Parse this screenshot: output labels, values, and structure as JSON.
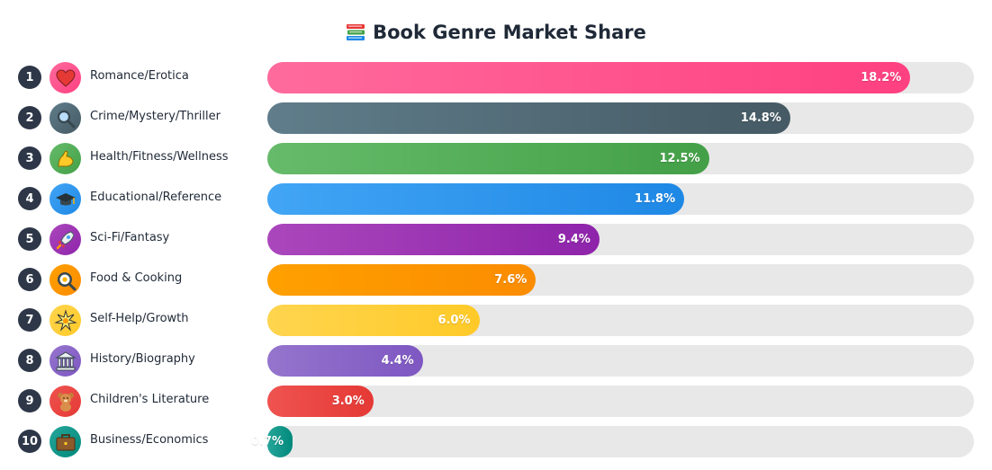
{
  "chart_data": {
    "type": "bar",
    "orientation": "horizontal",
    "title": "Book Genre Market Share",
    "title_icon": "books-icon",
    "xlim": [
      0,
      20
    ],
    "grid": false,
    "legend": "none",
    "value_suffix": "%",
    "categories": [
      "Romance/Erotica",
      "Crime/Mystery/Thriller",
      "Health/Fitness/Wellness",
      "Educational/Reference",
      "Sci-Fi/Fantasy",
      "Food & Cooking",
      "Self-Help/Growth",
      "History/Biography",
      "Children's Literature",
      "Business/Economics"
    ],
    "values": [
      18.2,
      14.8,
      12.5,
      11.8,
      9.4,
      7.6,
      6.0,
      4.4,
      3.0,
      0.7
    ],
    "ranks": [
      "1",
      "2",
      "3",
      "4",
      "5",
      "6",
      "7",
      "8",
      "9",
      "10"
    ],
    "icons": [
      "heart-icon",
      "magnifying-glass-icon",
      "flexed-arm-icon",
      "graduation-cap-icon",
      "rocket-icon",
      "pan-egg-icon",
      "sparkle-burst-icon",
      "classical-building-icon",
      "teddy-bear-icon",
      "briefcase-icon"
    ],
    "colors": [
      [
        "#ff6b9d",
        "#ff4081"
      ],
      [
        "#607d8b",
        "#455a64"
      ],
      [
        "#66bb6a",
        "#43a047"
      ],
      [
        "#42a5f5",
        "#1e88e5"
      ],
      [
        "#ab47bc",
        "#8e24aa"
      ],
      [
        "#ffa000",
        "#fb8c00"
      ],
      [
        "#ffd54f",
        "#ffca28"
      ],
      [
        "#9575cd",
        "#7e57c2"
      ],
      [
        "#ef5350",
        "#e53935"
      ],
      [
        "#26a69a",
        "#00897b"
      ]
    ]
  }
}
